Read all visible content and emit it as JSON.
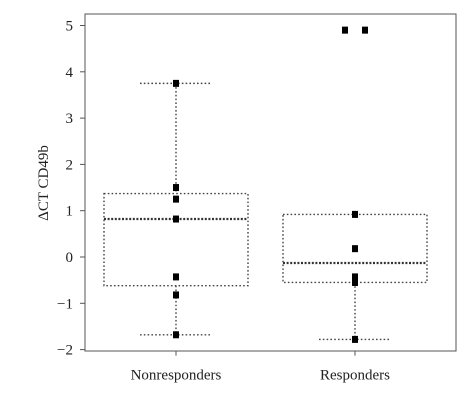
{
  "chart_data": {
    "type": "box",
    "title": "",
    "xlabel": "",
    "ylabel": "ΔCT CD49b",
    "ylim": [
      -2,
      5
    ],
    "yticks": [
      -2,
      -1,
      0,
      1,
      2,
      3,
      4,
      5
    ],
    "grid": false,
    "categories": [
      "Nonresponders",
      "Responders"
    ],
    "boxes": [
      {
        "category": "Nonresponders",
        "whisker_low": -1.68,
        "q1": -0.62,
        "median": 0.82,
        "q3": 1.37,
        "whisker_high": 3.75,
        "points": [
          3.75,
          1.5,
          1.25,
          0.82,
          -0.43,
          -0.82,
          -1.68
        ]
      },
      {
        "category": "Responders",
        "whisker_low": -1.78,
        "q1": -0.55,
        "median": -0.13,
        "q3": 0.92,
        "whisker_high": null,
        "points": [
          4.9,
          4.9,
          0.92,
          0.18,
          -0.43,
          -0.55,
          -1.78
        ]
      }
    ]
  }
}
